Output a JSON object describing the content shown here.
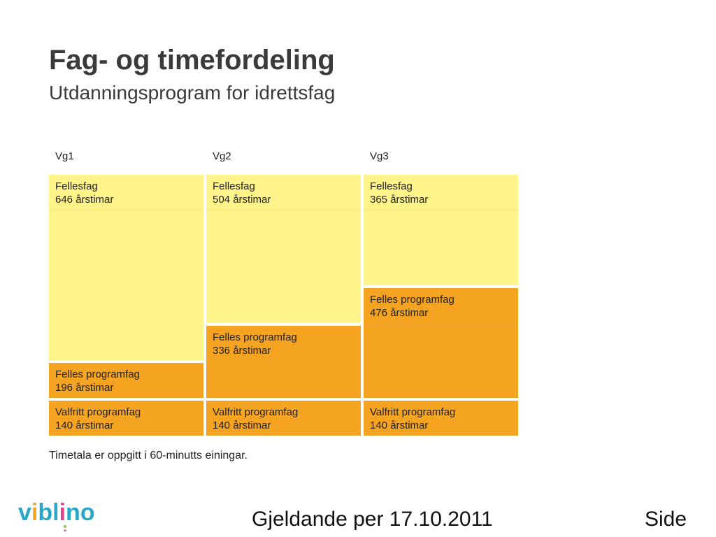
{
  "title": "Fag- og timefordeling",
  "subtitle": "Utdanningsprogram for idrettsfag",
  "columns": [
    {
      "header": "Vg1",
      "blocks": [
        {
          "label": "Fellesfag",
          "value": "646 årstimar",
          "hours": 646
        },
        {
          "label": "Felles programfag",
          "value": "196 årstimar",
          "hours": 196
        },
        {
          "label": "Valfritt programfag",
          "value": "140 årstimar",
          "hours": 140
        }
      ]
    },
    {
      "header": "Vg2",
      "blocks": [
        {
          "label": "Fellesfag",
          "value": "504 årstimar",
          "hours": 504
        },
        {
          "label": "Felles programfag",
          "value": "336 årstimar",
          "hours": 336
        },
        {
          "label": "Valfritt programfag",
          "value": "140 årstimar",
          "hours": 140
        }
      ]
    },
    {
      "header": "Vg3",
      "blocks": [
        {
          "label": "Fellesfag",
          "value": "365 årstimar",
          "hours": 365
        },
        {
          "label": "Felles programfag",
          "value": "476 årstimar",
          "hours": 476
        },
        {
          "label": "Valfritt programfag",
          "value": "140 årstimar",
          "hours": 140
        }
      ]
    }
  ],
  "footnote": "Timetala er oppgitt i 60-minutts einingar.",
  "footer": {
    "date": "Gjeldande per 17.10.2011",
    "page": "Side"
  },
  "logo": {
    "letters": [
      "v",
      "i",
      "b",
      "l",
      "n",
      "o"
    ],
    "colors": [
      "#2aa7c9",
      "#f5a421",
      "#2aa7c9",
      "#2aa7c9",
      "#2aa7c9",
      "#2aa7c9"
    ],
    "accent_colors": [
      "#e83e8c",
      "#8dc63f",
      "#f5a421"
    ]
  },
  "colors": {
    "fellesfag": "#fff48a",
    "programfag": "#f5a421",
    "title": "#3a3a3a"
  }
}
